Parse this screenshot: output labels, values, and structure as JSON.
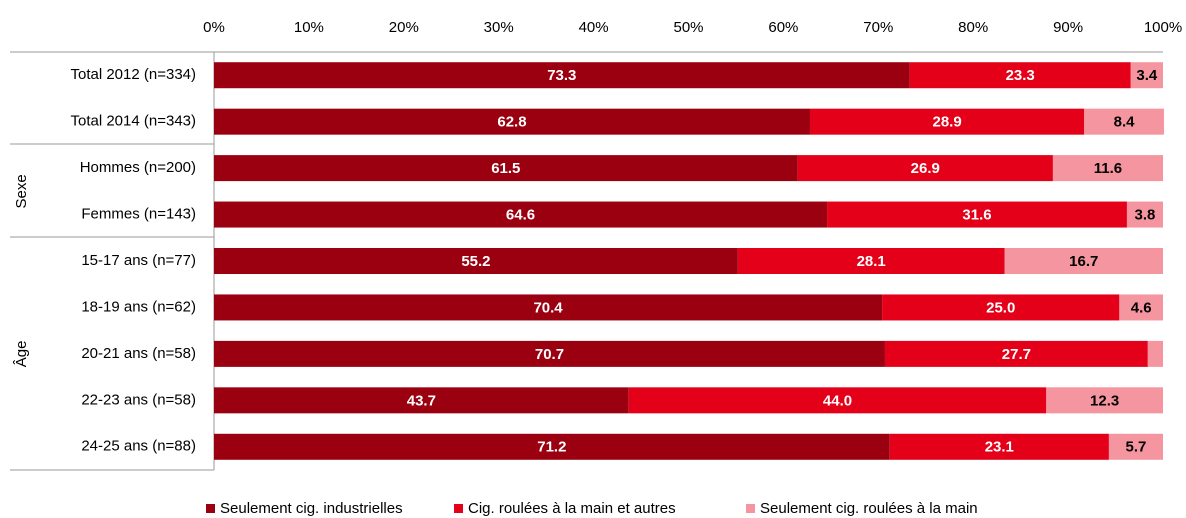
{
  "chart_data": {
    "type": "stacked-bar-horizontal",
    "categories": [
      "Total 2012 (n=334)",
      "Total 2014 (n=343)",
      "Hommes (n=200)",
      "Femmes (n=143)",
      "15-17 ans (n=77)",
      "18-19 ans (n=62)",
      "20-21 ans (n=58)",
      "22-23 ans (n=58)",
      "24-25 ans (n=88)"
    ],
    "category_groups": [
      null,
      null,
      "Sexe",
      "Sexe",
      "Âge",
      "Âge",
      "Âge",
      "Âge",
      "Âge"
    ],
    "series": [
      {
        "name": "Seulement cig. industrielles",
        "color": "#9a0010",
        "label_color": "#ffffff",
        "values": [
          73.3,
          62.8,
          61.5,
          64.6,
          55.2,
          70.4,
          70.7,
          43.7,
          71.2
        ],
        "value_labels": [
          "73.3",
          "62.8",
          "61.5",
          "64.6",
          "55.2",
          "70.4",
          "70.7",
          "43.7",
          "71.2"
        ]
      },
      {
        "name": "Cig. roulées à la main et autres",
        "color": "#e30018",
        "label_color": "#ffffff",
        "values": [
          23.3,
          28.9,
          26.9,
          31.6,
          28.1,
          25.0,
          27.7,
          44.0,
          23.1
        ],
        "value_labels": [
          "23.3",
          "28.9",
          "26.9",
          "31.6",
          "28.1",
          "25.0",
          "27.7",
          "44.0",
          "23.1"
        ]
      },
      {
        "name": "Seulement cig. roulées à la main",
        "color": "#f4959f",
        "label_color": "#000000",
        "values": [
          3.4,
          8.4,
          11.6,
          3.8,
          16.7,
          4.6,
          1.6,
          12.3,
          5.7
        ],
        "value_labels": [
          "3.4",
          "8.4",
          "11.6",
          "3.8",
          "16.7",
          "4.6",
          null,
          "12.3",
          "5.7"
        ]
      }
    ],
    "xlim": [
      0,
      100
    ],
    "xticks": [
      {
        "value": 0,
        "label": "0%"
      },
      {
        "value": 10,
        "label": "10%"
      },
      {
        "value": 20,
        "label": "20%"
      },
      {
        "value": 30,
        "label": "30%"
      },
      {
        "value": 40,
        "label": "40%"
      },
      {
        "value": 50,
        "label": "50%"
      },
      {
        "value": 60,
        "label": "60%"
      },
      {
        "value": 70,
        "label": "70%"
      },
      {
        "value": 80,
        "label": "80%"
      },
      {
        "value": 90,
        "label": "90%"
      },
      {
        "value": 100,
        "label": "100%"
      }
    ],
    "legend": "bottom"
  }
}
